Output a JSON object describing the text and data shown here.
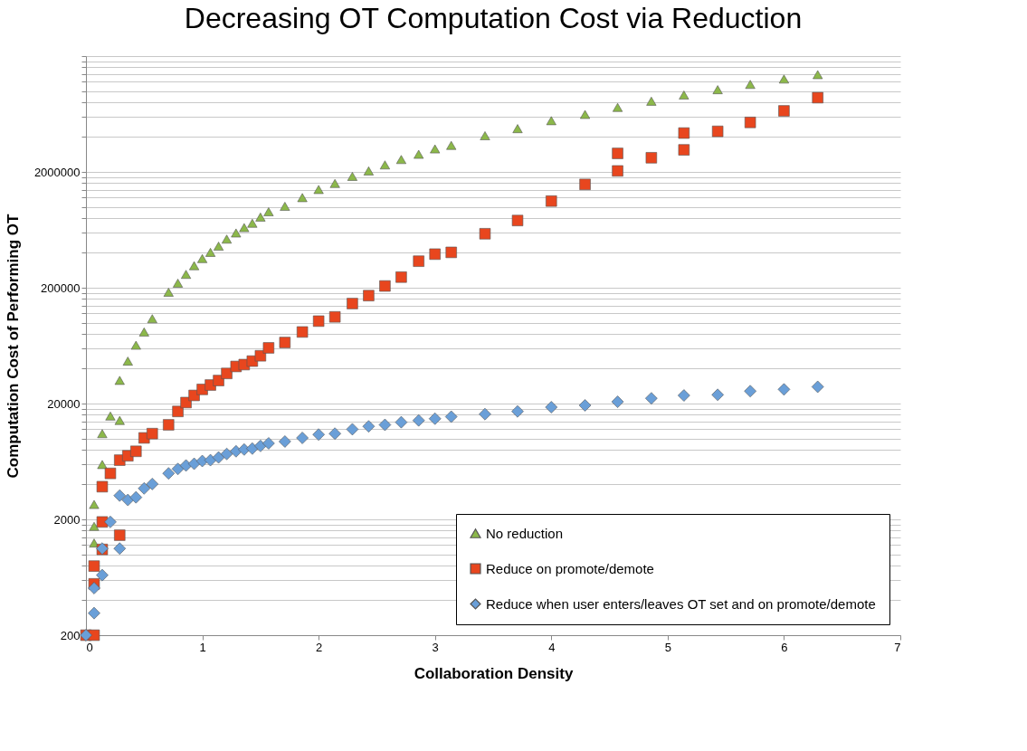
{
  "chart_data": {
    "type": "scatter",
    "title": "Decreasing OT Computation Cost via Reduction",
    "xlabel": "Collaboration Density",
    "ylabel": "Computation Cost of Performing OT",
    "log": "y",
    "grid": "y",
    "legend": "bottom right",
    "xlim": [
      0,
      7
    ],
    "xticks": [
      0,
      1,
      2,
      3,
      4,
      5,
      6,
      7
    ],
    "ylim": [
      200,
      20000000
    ],
    "yticks": [
      200,
      {
        "value": 400,
        "label": null
      },
      {
        "value": 600,
        "label": null
      },
      {
        "value": 800,
        "label": null
      },
      {
        "value": 1000,
        "label": null
      },
      {
        "value": 1200,
        "label": null
      },
      {
        "value": 1400,
        "label": null
      },
      {
        "value": 1600,
        "label": null
      },
      {
        "value": 1800,
        "label": null
      },
      2000,
      {
        "value": 4000,
        "label": null
      },
      {
        "value": 6000,
        "label": null
      },
      {
        "value": 8000,
        "label": null
      },
      {
        "value": 10000,
        "label": null
      },
      {
        "value": 12000,
        "label": null
      },
      {
        "value": 14000,
        "label": null
      },
      {
        "value": 16000,
        "label": null
      },
      {
        "value": 18000,
        "label": null
      },
      20000,
      {
        "value": 40000,
        "label": null
      },
      {
        "value": 60000,
        "label": null
      },
      {
        "value": 80000,
        "label": null
      },
      {
        "value": 100000,
        "label": null
      },
      {
        "value": 120000,
        "label": null
      },
      {
        "value": 140000,
        "label": null
      },
      {
        "value": 160000,
        "label": null
      },
      {
        "value": 180000,
        "label": null
      },
      200000,
      {
        "value": 400000,
        "label": null
      },
      {
        "value": 600000,
        "label": null
      },
      {
        "value": 800000,
        "label": null
      },
      {
        "value": 1000000,
        "label": null
      },
      {
        "value": 1200000,
        "label": null
      },
      {
        "value": 1400000,
        "label": null
      },
      {
        "value": 1600000,
        "label": null
      },
      {
        "value": 1800000,
        "label": null
      },
      2000000,
      {
        "value": 4000000,
        "label": null
      },
      {
        "value": 6000000,
        "label": null
      },
      {
        "value": 8000000,
        "label": null
      },
      {
        "value": 10000000,
        "label": null
      },
      {
        "value": 12000000,
        "label": null
      },
      {
        "value": 14000000,
        "label": null
      },
      {
        "value": 16000000,
        "label": null
      },
      {
        "value": 18000000,
        "label": null
      },
      {
        "value": 20000000,
        "label": null
      }
    ],
    "series": [
      {
        "name": "No reduction",
        "color": "#8cb84a",
        "marker": "triangle",
        "x": [
          0.07,
          0.07,
          0.07,
          0.14,
          0.14,
          0.21,
          0.29,
          0.29,
          0.36,
          0.43,
          0.5,
          0.57,
          0.71,
          0.79,
          0.86,
          0.93,
          1.0,
          1.07,
          1.14,
          1.21,
          1.29,
          1.36,
          1.43,
          1.5,
          1.57,
          1.71,
          1.86,
          2.0,
          2.14,
          2.29,
          2.43,
          2.57,
          2.71,
          2.86,
          3.0,
          3.14,
          3.43,
          3.71,
          4.0,
          4.29,
          4.57,
          4.86,
          5.14,
          5.43,
          5.71,
          6.0,
          6.29
        ],
        "values": [
          1250,
          1740,
          2690,
          5950,
          11000,
          15600,
          14300,
          31700,
          46500,
          63800,
          83000,
          108000,
          183000,
          219000,
          261000,
          310000,
          357000,
          404000,
          457000,
          526000,
          594000,
          661000,
          721000,
          815000,
          906000,
          1010000,
          1200000,
          1410000,
          1590000,
          1830000,
          2040000,
          2300000,
          2560000,
          2840000,
          3160000,
          3390000,
          4110000,
          4730000,
          5540000,
          6270000,
          7210000,
          8160000,
          9230000,
          10260000,
          11400000,
          12680000,
          13840000
        ]
      },
      {
        "name": "Reduce on promote/demote",
        "color": "#e8461e",
        "marker": "square",
        "x": [
          0,
          0.07,
          0.07,
          0.07,
          0.14,
          0.14,
          0.14,
          0.21,
          0.29,
          0.29,
          0.36,
          0.43,
          0.5,
          0.57,
          0.71,
          0.79,
          0.86,
          0.93,
          1.0,
          1.07,
          1.14,
          1.21,
          1.29,
          1.36,
          1.43,
          1.5,
          1.57,
          1.71,
          1.86,
          2.0,
          2.14,
          2.29,
          2.43,
          2.57,
          2.71,
          2.86,
          3.0,
          3.14,
          3.43,
          3.71,
          4.0,
          4.29,
          4.57,
          4.57,
          4.86,
          5.14,
          5.14,
          5.43,
          5.71,
          6.0,
          6.29
        ],
        "values": [
          200,
          200,
          555,
          790,
          1900,
          3830,
          1100,
          4990,
          1460,
          6490,
          7080,
          7740,
          10100,
          11000,
          13100,
          17100,
          20400,
          23500,
          26500,
          28900,
          31600,
          36400,
          41800,
          43400,
          46500,
          51700,
          60500,
          67300,
          83000,
          103000,
          112000,
          146000,
          171000,
          207000,
          247000,
          339000,
          390000,
          404000,
          585000,
          761000,
          1120000,
          1560000,
          2040000,
          2890000,
          2650000,
          3100000,
          4330000,
          4480000,
          5350000,
          6730000,
          8750000
        ]
      },
      {
        "name": "Reduce when user enters/leaves OT set and on promote/demote",
        "color": "#6a9fd8",
        "marker": "diamond",
        "x": [
          0,
          0.07,
          0.07,
          0.14,
          0.14,
          0.21,
          0.29,
          0.29,
          0.36,
          0.43,
          0.5,
          0.57,
          0.71,
          0.79,
          0.86,
          0.93,
          1.0,
          1.07,
          1.14,
          1.21,
          1.29,
          1.36,
          1.43,
          1.5,
          1.57,
          1.71,
          1.86,
          2.0,
          2.14,
          2.29,
          2.43,
          2.57,
          2.71,
          2.86,
          3.0,
          3.14,
          3.43,
          3.71,
          4.0,
          4.29,
          4.57,
          4.86,
          5.14,
          5.43,
          5.71,
          6.0,
          6.29
        ],
        "values": [
          200,
          310,
          510,
          660,
          1120,
          1900,
          1120,
          3210,
          2940,
          3100,
          3700,
          4040,
          4990,
          5450,
          5840,
          6040,
          6380,
          6490,
          6850,
          7340,
          7740,
          8020,
          8170,
          8610,
          9070,
          9400,
          10100,
          10800,
          11000,
          12000,
          12700,
          13100,
          13800,
          14300,
          14800,
          15400,
          16200,
          17100,
          18600,
          19300,
          20700,
          22200,
          23500,
          23800,
          25600,
          26500,
          27900
        ]
      }
    ]
  }
}
